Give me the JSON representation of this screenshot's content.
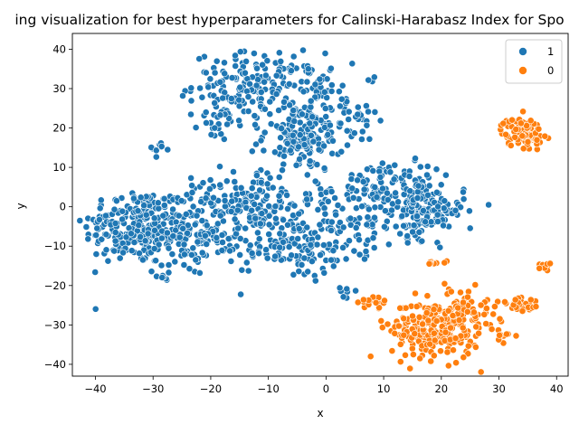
{
  "chart_data": {
    "type": "scatter",
    "title": "ing visualization for best hyperparameters for Calinski-Harabasz Index for Spo",
    "xlabel": "x",
    "ylabel": "y",
    "xlim": [
      -44,
      42
    ],
    "ylim": [
      -43,
      44
    ],
    "xticks": [
      -40,
      -30,
      -20,
      -10,
      0,
      10,
      20,
      30,
      40
    ],
    "yticks": [
      -40,
      -30,
      -20,
      -10,
      0,
      10,
      20,
      30,
      40
    ],
    "grid": false,
    "legend_position": "top-right",
    "legend": [
      {
        "label": "1",
        "color": "#1f77b4"
      },
      {
        "label": "0",
        "color": "#ff7f0e"
      }
    ],
    "series": [
      {
        "name": "1",
        "color": "#1f77b4",
        "clusters": [
          {
            "cx": -33,
            "cy": -5,
            "sx": 4.5,
            "sy": 5,
            "n": 220
          },
          {
            "cx": -25,
            "cy": -7,
            "sx": 3.5,
            "sy": 5,
            "n": 110
          },
          {
            "cx": -18,
            "cy": -5,
            "sx": 3.5,
            "sy": 6,
            "n": 80
          },
          {
            "cx": -12,
            "cy": 31,
            "sx": 5.5,
            "sy": 4,
            "n": 170
          },
          {
            "cx": -18,
            "cy": 23,
            "sx": 2,
            "sy": 3,
            "n": 30
          },
          {
            "cx": -4,
            "cy": 18,
            "sx": 3.5,
            "sy": 4.5,
            "n": 160
          },
          {
            "cx": -1,
            "cy": 29,
            "sx": 2,
            "sy": 2.5,
            "n": 30
          },
          {
            "cx": 5,
            "cy": 22,
            "sx": 2,
            "sy": 3,
            "n": 30
          },
          {
            "cx": -12,
            "cy": 2,
            "sx": 5,
            "sy": 4,
            "n": 120
          },
          {
            "cx": -7,
            "cy": -10,
            "sx": 3.5,
            "sy": 4,
            "n": 90
          },
          {
            "cx": 0,
            "cy": -6,
            "sx": 3,
            "sy": 6,
            "n": 70
          },
          {
            "cx": 8,
            "cy": 6,
            "sx": 2.5,
            "sy": 3,
            "n": 50
          },
          {
            "cx": 6,
            "cy": -4,
            "sx": 2.5,
            "sy": 4,
            "n": 40
          },
          {
            "cx": 17,
            "cy": -1,
            "sx": 3.5,
            "sy": 3.5,
            "n": 160
          },
          {
            "cx": 15,
            "cy": 6,
            "sx": 2.5,
            "sy": 2.5,
            "n": 40
          },
          {
            "cx": -29,
            "cy": 15,
            "sx": 1,
            "sy": 1,
            "n": 9
          },
          {
            "cx": -29,
            "cy": -18,
            "sx": 1,
            "sy": 1,
            "n": 6
          },
          {
            "cx": 3,
            "cy": -22,
            "sx": 1.2,
            "sy": 1,
            "n": 8
          },
          {
            "cx": 8,
            "cy": 32,
            "sx": 0.5,
            "sy": 0.5,
            "n": 3
          }
        ]
      },
      {
        "name": "0",
        "color": "#ff7f0e",
        "clusters": [
          {
            "cx": 19,
            "cy": -31,
            "sx": 3.8,
            "sy": 3.8,
            "n": 240
          },
          {
            "cx": 24,
            "cy": -27,
            "sx": 3,
            "sy": 3,
            "n": 60
          },
          {
            "cx": 34,
            "cy": 19,
            "sx": 1.8,
            "sy": 1.8,
            "n": 90
          },
          {
            "cx": 34,
            "cy": -25,
            "sx": 1.5,
            "sy": 1.3,
            "n": 30
          },
          {
            "cx": 38,
            "cy": -15,
            "sx": 0.8,
            "sy": 1,
            "n": 12
          },
          {
            "cx": 8,
            "cy": -25,
            "sx": 1.2,
            "sy": 1.5,
            "n": 20
          },
          {
            "cx": 20,
            "cy": -14,
            "sx": 1.2,
            "sy": 0.6,
            "n": 8
          },
          {
            "cx": 31,
            "cy": -33,
            "sx": 0.8,
            "sy": 0.8,
            "n": 8
          }
        ]
      }
    ]
  }
}
